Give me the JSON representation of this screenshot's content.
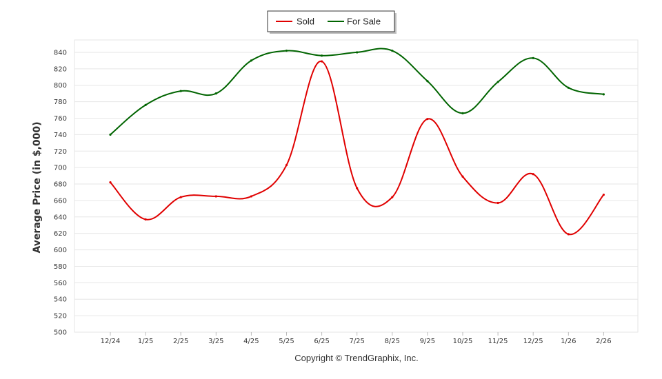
{
  "chart_data": {
    "type": "line",
    "categories": [
      "12/24",
      "1/25",
      "2/25",
      "3/25",
      "4/25",
      "5/25",
      "6/25",
      "7/25",
      "8/25",
      "9/25",
      "10/25",
      "11/25",
      "12/25",
      "1/26",
      "2/26"
    ],
    "x_label_positions": [
      0,
      1,
      2,
      3,
      4,
      5,
      6,
      7,
      8,
      9,
      10,
      11,
      12,
      13,
      14
    ],
    "series": [
      {
        "name": "Sold",
        "color": "#e00000",
        "x": [
          0,
          1,
          2,
          3,
          4,
          5,
          6,
          7,
          8,
          9,
          10,
          11,
          12,
          13,
          14
        ],
        "values": [
          682,
          637,
          664,
          665,
          665,
          703,
          829,
          675,
          664,
          759,
          689,
          657,
          692,
          619,
          667
        ]
      },
      {
        "name": "For Sale",
        "color": "#006400",
        "x": [
          0,
          1,
          2,
          3,
          4,
          5,
          6,
          7,
          8,
          9,
          10,
          11,
          12,
          13,
          14
        ],
        "values": [
          740,
          776,
          793,
          790,
          830,
          842,
          836,
          840,
          842,
          805,
          766,
          804,
          833,
          797,
          789
        ]
      }
    ],
    "ylabel": "Average Price (in $,000)",
    "ylim": [
      500,
      850
    ],
    "yticks": [
      500,
      520,
      540,
      560,
      580,
      600,
      620,
      640,
      660,
      680,
      700,
      720,
      740,
      760,
      780,
      800,
      820,
      840
    ],
    "grid": true,
    "legend_position": "top-center",
    "footer": "Copyright © TrendGraphix, Inc."
  }
}
